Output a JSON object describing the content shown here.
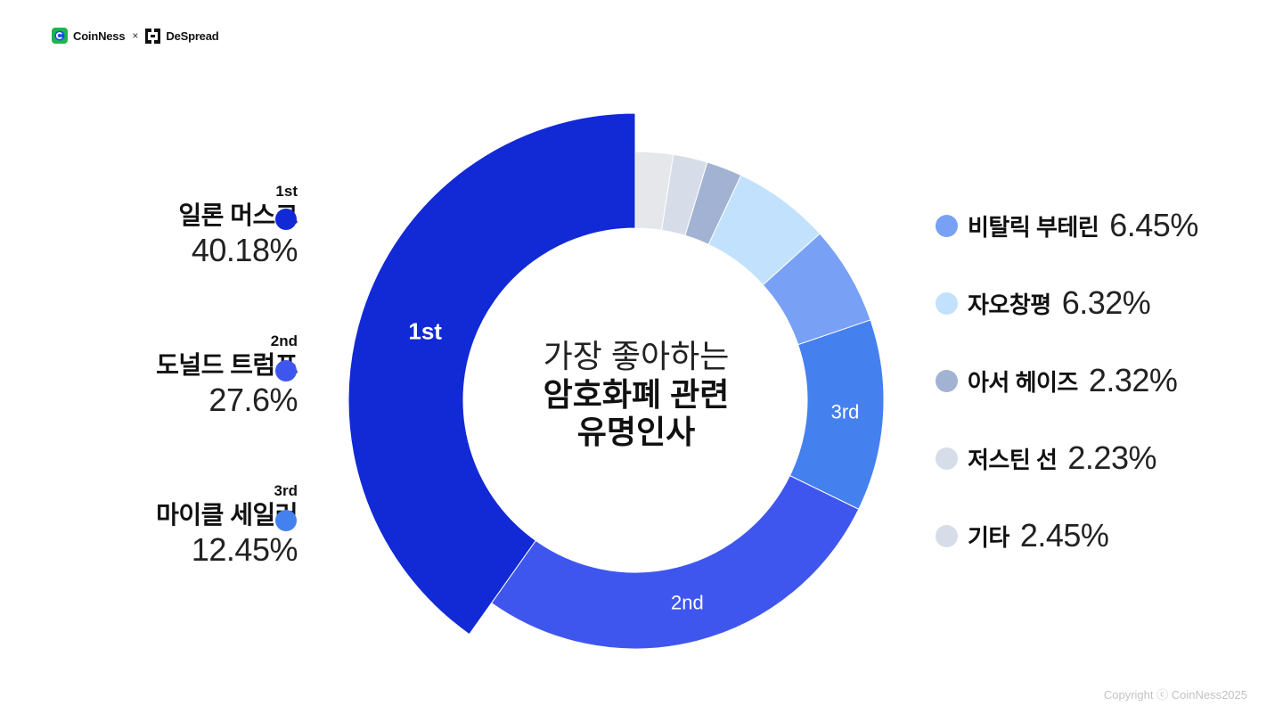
{
  "brand": {
    "left_name": "CoinNess",
    "separator": "×",
    "right_name": "DeSpread"
  },
  "center": {
    "line1": "가장 좋아하는",
    "line2": "암호화폐 관련",
    "line3": "유명인사"
  },
  "left_legend": [
    {
      "rank": "1st",
      "name": "일론 머스크",
      "pct": "40.18%",
      "color": "#1229D6"
    },
    {
      "rank": "2nd",
      "name": "도널드 트럼프",
      "pct": "27.6%",
      "color": "#3F56EE"
    },
    {
      "rank": "3rd",
      "name": "마이클 세일러",
      "pct": "12.45%",
      "color": "#4580EF"
    }
  ],
  "right_legend": [
    {
      "name": "비탈릭 부테린",
      "pct": "6.45%",
      "color": "#78A1F5"
    },
    {
      "name": "자오창평",
      "pct": "6.32%",
      "color": "#C2E1FD"
    },
    {
      "name": "아서 헤이즈",
      "pct": "2.32%",
      "color": "#A2B2D2"
    },
    {
      "name": "저스틴 선",
      "pct": "2.23%",
      "color": "#D6DCE8"
    },
    {
      "name": "기타",
      "pct": "2.45%",
      "color": "#D6DCE8"
    }
  ],
  "chart_data": {
    "type": "pie",
    "title": "가장 좋아하는 암호화폐 관련 유명인사",
    "categories": [
      "일론 머스크",
      "도널드 트럼프",
      "마이클 세일러",
      "비탈릭 부테린",
      "자오창평",
      "아서 헤이즈",
      "저스틴 선",
      "기타"
    ],
    "values": [
      40.18,
      27.6,
      12.45,
      6.45,
      6.32,
      2.32,
      2.23,
      2.45
    ],
    "slice_order_clockwise_from_top": [
      "기타",
      "저스틴 선",
      "아서 헤이즈",
      "자오창평",
      "비탈릭 부테린",
      "마이클 세일러",
      "도널드 트럼프",
      "일론 머스크"
    ],
    "colors": {
      "일론 머스크": "#1229D6",
      "도널드 트럼프": "#3F56EE",
      "마이클 세일러": "#4580EF",
      "비탈릭 부테린": "#78A1F5",
      "자오창평": "#C2E1FD",
      "아서 헤이즈": "#A2B2D2",
      "저스틴 선": "#D6DCE8",
      "기타": "#E6E7EA"
    },
    "slice_labels": {
      "일론 머스크": "1st",
      "도널드 트럼프": "2nd",
      "마이클 세일러": "3rd"
    },
    "donut": true,
    "highlighted": "일론 머스크",
    "legend": "left and right"
  },
  "footer": {
    "copyright": "Copyright ⓒ CoinNess2025"
  }
}
